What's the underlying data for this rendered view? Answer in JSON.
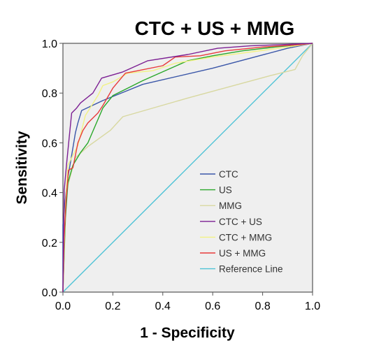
{
  "chart_data": {
    "type": "line",
    "title": "CTC + US + MMG",
    "xlabel": "1 - Specificity",
    "ylabel": "Sensitivity",
    "xlim": [
      0,
      1
    ],
    "ylim": [
      0,
      1
    ],
    "x_ticks": [
      "0.0",
      "0.2",
      "0.4",
      "0.6",
      "0.8",
      "1.0"
    ],
    "y_ticks": [
      "0.0",
      "0.2",
      "0.4",
      "0.6",
      "0.8",
      "1.0"
    ],
    "grid": false,
    "plot_background": "#efefef",
    "legend_position": "bottom-right",
    "series": [
      {
        "name": "CTC",
        "color": "#3a56a8",
        "points": [
          [
            0,
            0
          ],
          [
            0,
            0.27
          ],
          [
            0.008,
            0.36
          ],
          [
            0.018,
            0.45
          ],
          [
            0.035,
            0.55
          ],
          [
            0.05,
            0.64
          ],
          [
            0.06,
            0.68
          ],
          [
            0.075,
            0.73
          ],
          [
            0.16,
            0.77
          ],
          [
            0.32,
            0.835
          ],
          [
            0.6,
            0.9
          ],
          [
            0.9,
            0.98
          ],
          [
            1,
            1
          ]
        ]
      },
      {
        "name": "US",
        "color": "#2aa82a",
        "points": [
          [
            0,
            0
          ],
          [
            0.01,
            0.3
          ],
          [
            0.02,
            0.44
          ],
          [
            0.04,
            0.51
          ],
          [
            0.07,
            0.56
          ],
          [
            0.1,
            0.6
          ],
          [
            0.13,
            0.67
          ],
          [
            0.16,
            0.74
          ],
          [
            0.2,
            0.79
          ],
          [
            0.32,
            0.85
          ],
          [
            0.5,
            0.93
          ],
          [
            0.6,
            0.95
          ],
          [
            0.72,
            0.97
          ],
          [
            0.85,
            0.985
          ],
          [
            1,
            1
          ]
        ]
      },
      {
        "name": "MMG",
        "color": "#d8d8a0",
        "points": [
          [
            0,
            0
          ],
          [
            0.01,
            0.35
          ],
          [
            0.02,
            0.43
          ],
          [
            0.05,
            0.54
          ],
          [
            0.1,
            0.585
          ],
          [
            0.19,
            0.65
          ],
          [
            0.24,
            0.705
          ],
          [
            0.5,
            0.78
          ],
          [
            0.83,
            0.87
          ],
          [
            0.93,
            0.895
          ],
          [
            0.96,
            0.95
          ],
          [
            1,
            1
          ]
        ]
      },
      {
        "name": "CTC  + US",
        "color": "#7c1f93",
        "points": [
          [
            0,
            0
          ],
          [
            0.005,
            0.41
          ],
          [
            0.015,
            0.52
          ],
          [
            0.025,
            0.62
          ],
          [
            0.035,
            0.72
          ],
          [
            0.055,
            0.74
          ],
          [
            0.07,
            0.76
          ],
          [
            0.12,
            0.8
          ],
          [
            0.155,
            0.86
          ],
          [
            0.24,
            0.885
          ],
          [
            0.34,
            0.93
          ],
          [
            0.5,
            0.955
          ],
          [
            0.62,
            0.98
          ],
          [
            0.75,
            0.99
          ],
          [
            0.88,
            0.995
          ],
          [
            1,
            1
          ]
        ]
      },
      {
        "name": "CTC + MMG",
        "color": "#f2f283",
        "points": [
          [
            0,
            0
          ],
          [
            0.01,
            0.35
          ],
          [
            0.02,
            0.51
          ],
          [
            0.04,
            0.55
          ],
          [
            0.06,
            0.59
          ],
          [
            0.09,
            0.71
          ],
          [
            0.14,
            0.79
          ],
          [
            0.16,
            0.83
          ],
          [
            0.2,
            0.845
          ],
          [
            0.26,
            0.88
          ],
          [
            0.36,
            0.89
          ],
          [
            0.45,
            0.92
          ],
          [
            0.6,
            0.945
          ],
          [
            0.75,
            0.965
          ],
          [
            0.9,
            0.985
          ],
          [
            1,
            1
          ]
        ]
      },
      {
        "name": "US + MMG",
        "color": "#e83b3b",
        "points": [
          [
            0,
            0
          ],
          [
            0.005,
            0.22
          ],
          [
            0.012,
            0.36
          ],
          [
            0.022,
            0.49
          ],
          [
            0.04,
            0.5
          ],
          [
            0.06,
            0.6
          ],
          [
            0.08,
            0.65
          ],
          [
            0.1,
            0.68
          ],
          [
            0.14,
            0.72
          ],
          [
            0.16,
            0.75
          ],
          [
            0.2,
            0.82
          ],
          [
            0.25,
            0.88
          ],
          [
            0.3,
            0.89
          ],
          [
            0.4,
            0.91
          ],
          [
            0.45,
            0.945
          ],
          [
            0.55,
            0.95
          ],
          [
            0.65,
            0.97
          ],
          [
            0.8,
            0.985
          ],
          [
            0.95,
            0.995
          ],
          [
            1,
            1
          ]
        ]
      },
      {
        "name": "Reference Line",
        "color": "#4fc3d6",
        "points": [
          [
            0,
            0
          ],
          [
            1,
            1
          ]
        ]
      }
    ]
  }
}
